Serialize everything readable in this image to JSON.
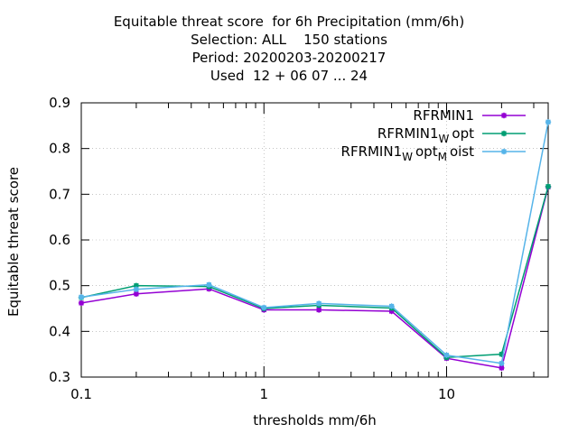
{
  "title_lines": [
    "Equitable threat score  for 6h Precipitation (mm/6h)",
    "Selection: ALL    150 stations",
    "Period: 20200203-20200217",
    "Used  12 + 06 07 ... 24"
  ],
  "chart_data": {
    "type": "line",
    "xlabel": "thresholds mm/6h",
    "ylabel": "Equitable threat score",
    "xscale": "log",
    "xlim": [
      0.1,
      36
    ],
    "ylim": [
      0.3,
      0.9
    ],
    "x_ticks": [
      0.1,
      1,
      10
    ],
    "x_tick_labels": [
      "0.1",
      "1",
      "10"
    ],
    "y_ticks": [
      0.3,
      0.4,
      0.5,
      0.6,
      0.7,
      0.8,
      0.9
    ],
    "y_tick_labels": [
      "0.3",
      "0.4",
      "0.5",
      "0.6",
      "0.7",
      "0.8",
      "0.9"
    ],
    "legend_position": "top-right",
    "x": [
      0.1,
      0.2,
      0.5,
      1,
      2,
      5,
      10,
      20,
      36
    ],
    "series": [
      {
        "name": "RFRMIN1",
        "name_parts": [
          [
            "RFRMIN1",
            false
          ]
        ],
        "color": "#9400d3",
        "values": [
          0.462,
          0.482,
          0.493,
          0.447,
          0.447,
          0.444,
          0.341,
          0.32,
          0.716
        ]
      },
      {
        "name": "RFRMIN1_Wopt",
        "name_parts": [
          [
            "RFRMIN1",
            false
          ],
          [
            "W",
            true
          ],
          [
            "opt",
            false
          ]
        ],
        "color": "#009e73",
        "values": [
          0.474,
          0.5,
          0.498,
          0.45,
          0.457,
          0.451,
          0.343,
          0.35,
          0.717
        ]
      },
      {
        "name": "RFRMIN1_Wopt_Moist",
        "name_parts": [
          [
            "RFRMIN1",
            false
          ],
          [
            "W",
            true
          ],
          [
            "opt",
            false
          ],
          [
            "M",
            true
          ],
          [
            "oist",
            false
          ]
        ],
        "color": "#56b4e9",
        "values": [
          0.475,
          0.492,
          0.502,
          0.452,
          0.461,
          0.455,
          0.348,
          0.33,
          0.858
        ]
      }
    ]
  }
}
